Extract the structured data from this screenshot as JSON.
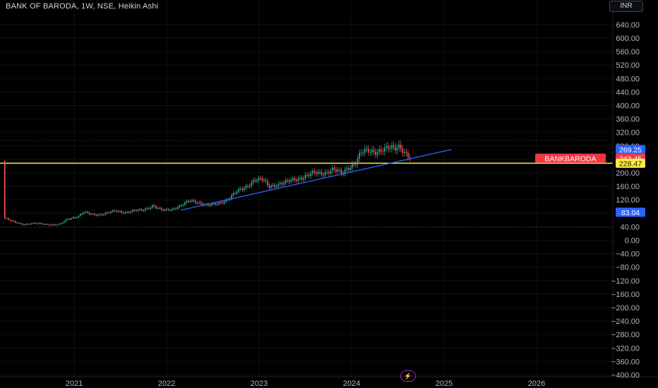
{
  "header": {
    "symbol_title": "BANK OF BARODA, 1W, NSE, Heikin Ashi",
    "currency_label": "INR",
    "logo_symbol": "⚡"
  },
  "chart_data": {
    "type": "candlestick",
    "title": "BANK OF BARODA, 1W, NSE, Heikin Ashi",
    "y_axis": {
      "ticks": [
        640,
        600,
        560,
        520,
        480,
        440,
        400,
        360,
        320,
        280,
        240,
        200,
        160,
        120,
        80,
        40,
        0,
        -40,
        -80,
        -120,
        -160,
        -200,
        -240,
        -280,
        -320,
        -360,
        -400
      ],
      "tick_labels": [
        "640.00",
        "600.00",
        "560.00",
        "520.00",
        "480.00",
        "440.00",
        "400.00",
        "360.00",
        "320.00",
        "280.00",
        "240.00",
        "200.00",
        "160.00",
        "120.00",
        "80.00",
        "40.00",
        "0.00",
        "−40.00",
        "−80.00",
        "−120.00",
        "−160.00",
        "−200.00",
        "−240.00",
        "−280.00",
        "−320.00",
        "−360.00",
        "−400.00"
      ],
      "ylim": [
        -400,
        680
      ]
    },
    "x_axis": {
      "ticks": [
        2021,
        2022,
        2023,
        2024,
        2025,
        2026
      ],
      "tick_labels": [
        "2021",
        "2022",
        "2023",
        "2024",
        "2025",
        "2026"
      ],
      "xlim": [
        2020.25,
        2027.3
      ]
    },
    "price_labels": [
      {
        "text": "269.25",
        "value": 269.25,
        "color": "#2962ff"
      },
      {
        "text": "243.45",
        "value": 243.45,
        "color": "#f23645"
      },
      {
        "text": "228.47",
        "value": 228.47,
        "color": "#ffeb3b"
      },
      {
        "text": "83.04",
        "value": 83.04,
        "color": "#2962ff"
      }
    ],
    "symbol_label": {
      "text": "BANKBARODA",
      "value": 243.45,
      "color": "#f23645"
    },
    "horizontal_lines": [
      {
        "value": 228.47,
        "color": "#ffeb3b",
        "style": "solid"
      },
      {
        "value": 296,
        "color": "#434651",
        "style": "dotted"
      },
      {
        "value": 38,
        "color": "#434651",
        "style": "dotted"
      }
    ],
    "trend_line": {
      "color": "#2962ff",
      "points": [
        [
          2022.15,
          89
        ],
        [
          2025.08,
          269.25
        ]
      ]
    },
    "series": [
      {
        "name": "weekly price path (approx.)",
        "up_color": "#26a69a",
        "down_color": "#ef5350",
        "points": [
          [
            2020.25,
            65
          ],
          [
            2020.35,
            54
          ],
          [
            2020.45,
            47
          ],
          [
            2020.55,
            50
          ],
          [
            2020.65,
            49
          ],
          [
            2020.75,
            46
          ],
          [
            2020.85,
            47
          ],
          [
            2020.92,
            62
          ],
          [
            2021.05,
            72
          ],
          [
            2021.1,
            83
          ],
          [
            2021.2,
            76
          ],
          [
            2021.3,
            77
          ],
          [
            2021.45,
            87
          ],
          [
            2021.55,
            83
          ],
          [
            2021.65,
            87
          ],
          [
            2021.75,
            90
          ],
          [
            2021.85,
            103
          ],
          [
            2021.95,
            88
          ],
          [
            2022.05,
            92
          ],
          [
            2022.15,
            102
          ],
          [
            2022.25,
            117
          ],
          [
            2022.35,
            112
          ],
          [
            2022.45,
            103
          ],
          [
            2022.55,
            108
          ],
          [
            2022.65,
            120
          ],
          [
            2022.75,
            142
          ],
          [
            2022.85,
            157
          ],
          [
            2022.95,
            180
          ],
          [
            2023.05,
            178
          ],
          [
            2023.1,
            160
          ],
          [
            2023.2,
            166
          ],
          [
            2023.3,
            172
          ],
          [
            2023.4,
            182
          ],
          [
            2023.5,
            190
          ],
          [
            2023.6,
            199
          ],
          [
            2023.7,
            200
          ],
          [
            2023.8,
            210
          ],
          [
            2023.9,
            197
          ],
          [
            2023.95,
            214
          ],
          [
            2024.05,
            232
          ],
          [
            2024.1,
            258
          ],
          [
            2024.18,
            266
          ],
          [
            2024.28,
            265
          ],
          [
            2024.38,
            270
          ],
          [
            2024.48,
            275
          ],
          [
            2024.52,
            283
          ],
          [
            2024.58,
            258
          ],
          [
            2024.63,
            244
          ],
          [
            2024.65,
            243
          ]
        ]
      }
    ]
  }
}
